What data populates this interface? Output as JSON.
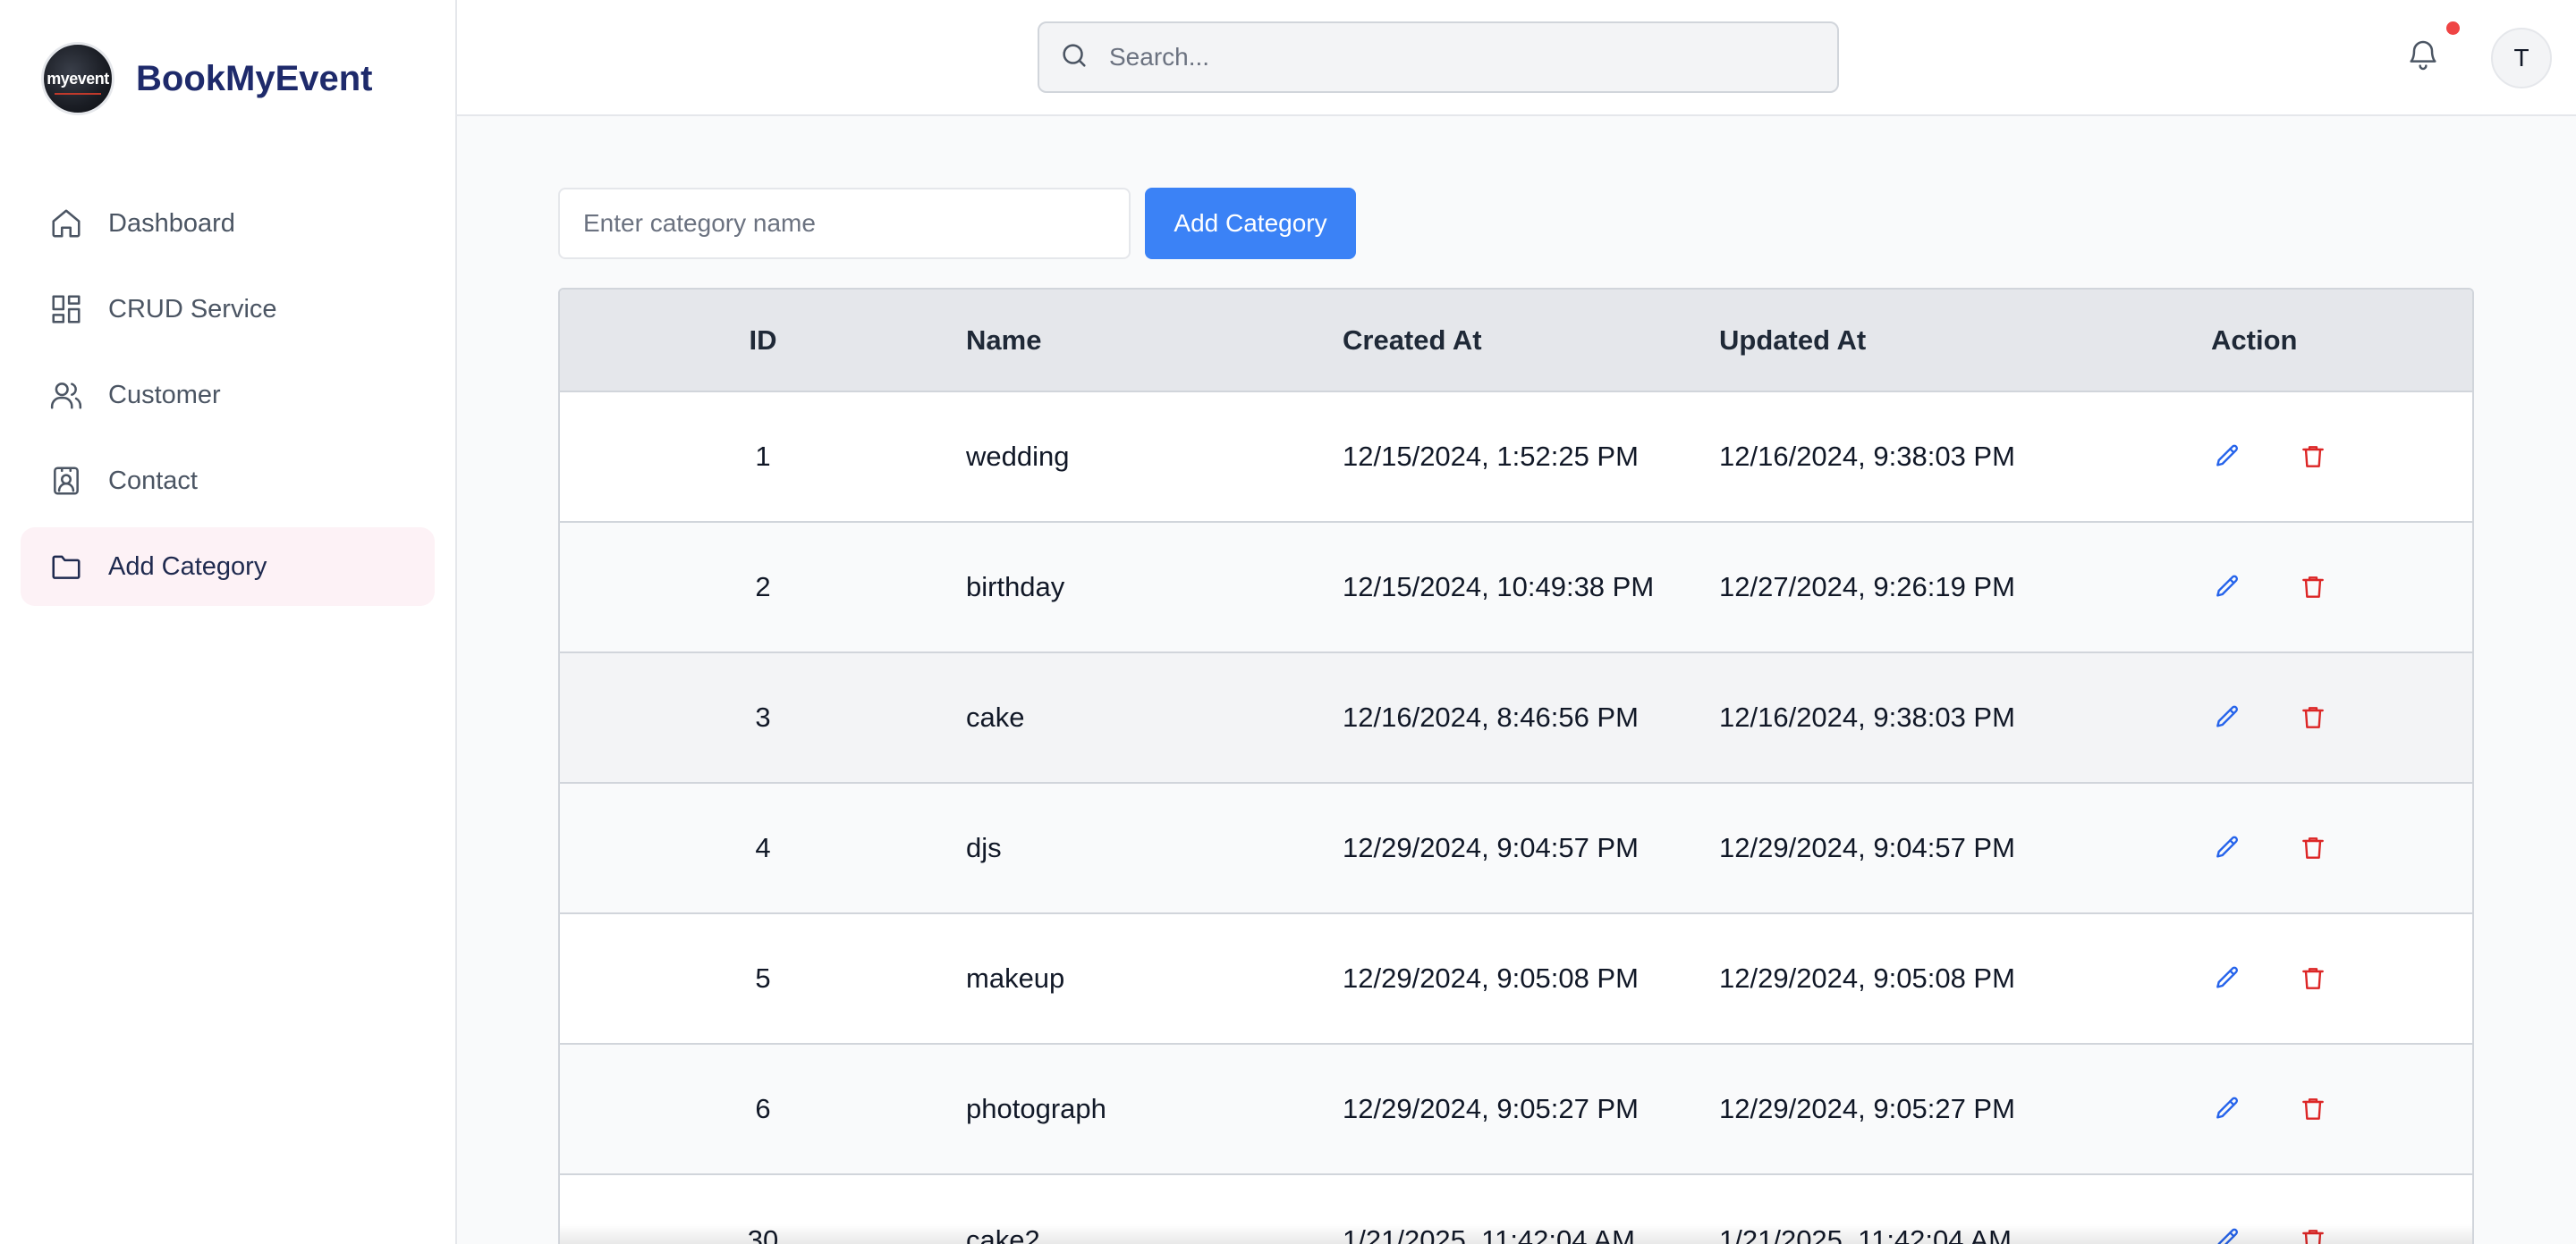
{
  "brand": {
    "name": "BookMyEvent",
    "logo_text": "myevent"
  },
  "sidebar": {
    "items": [
      {
        "label": "Dashboard",
        "icon": "home-icon"
      },
      {
        "label": "CRUD Service",
        "icon": "grid-icon"
      },
      {
        "label": "Customer",
        "icon": "users-icon"
      },
      {
        "label": "Contact",
        "icon": "contact-card-icon"
      },
      {
        "label": "Add Category",
        "icon": "folder-icon",
        "active": true
      }
    ]
  },
  "header": {
    "search_placeholder": "Search...",
    "avatar_initial": "T",
    "notification_dot_color": "#ef4444"
  },
  "form": {
    "input_placeholder": "Enter category name",
    "button_label": "Add Category"
  },
  "table": {
    "columns": [
      "ID",
      "Name",
      "Created At",
      "Updated At",
      "Action"
    ],
    "rows": [
      {
        "id": "1",
        "name": "wedding",
        "created": "12/15/2024, 1:52:25 PM",
        "updated": "12/16/2024, 9:38:03 PM"
      },
      {
        "id": "2",
        "name": "birthday",
        "created": "12/15/2024, 10:49:38 PM",
        "updated": "12/27/2024, 9:26:19 PM"
      },
      {
        "id": "3",
        "name": "cake",
        "created": "12/16/2024, 8:46:56 PM",
        "updated": "12/16/2024, 9:38:03 PM"
      },
      {
        "id": "4",
        "name": "djs",
        "created": "12/29/2024, 9:04:57 PM",
        "updated": "12/29/2024, 9:04:57 PM"
      },
      {
        "id": "5",
        "name": "makeup",
        "created": "12/29/2024, 9:05:08 PM",
        "updated": "12/29/2024, 9:05:08 PM"
      },
      {
        "id": "6",
        "name": "photograph",
        "created": "12/29/2024, 9:05:27 PM",
        "updated": "12/29/2024, 9:05:27 PM"
      },
      {
        "id": "30",
        "name": "cake2",
        "created": "1/21/2025, 11:42:04 AM",
        "updated": "1/21/2025, 11:42:04 AM"
      }
    ],
    "edit_color": "#2563eb",
    "delete_color": "#dc2626"
  },
  "colors": {
    "accent": "#3b82f6",
    "brand_text": "#1e2a6b",
    "active_nav_bg": "#fdf2f6"
  }
}
